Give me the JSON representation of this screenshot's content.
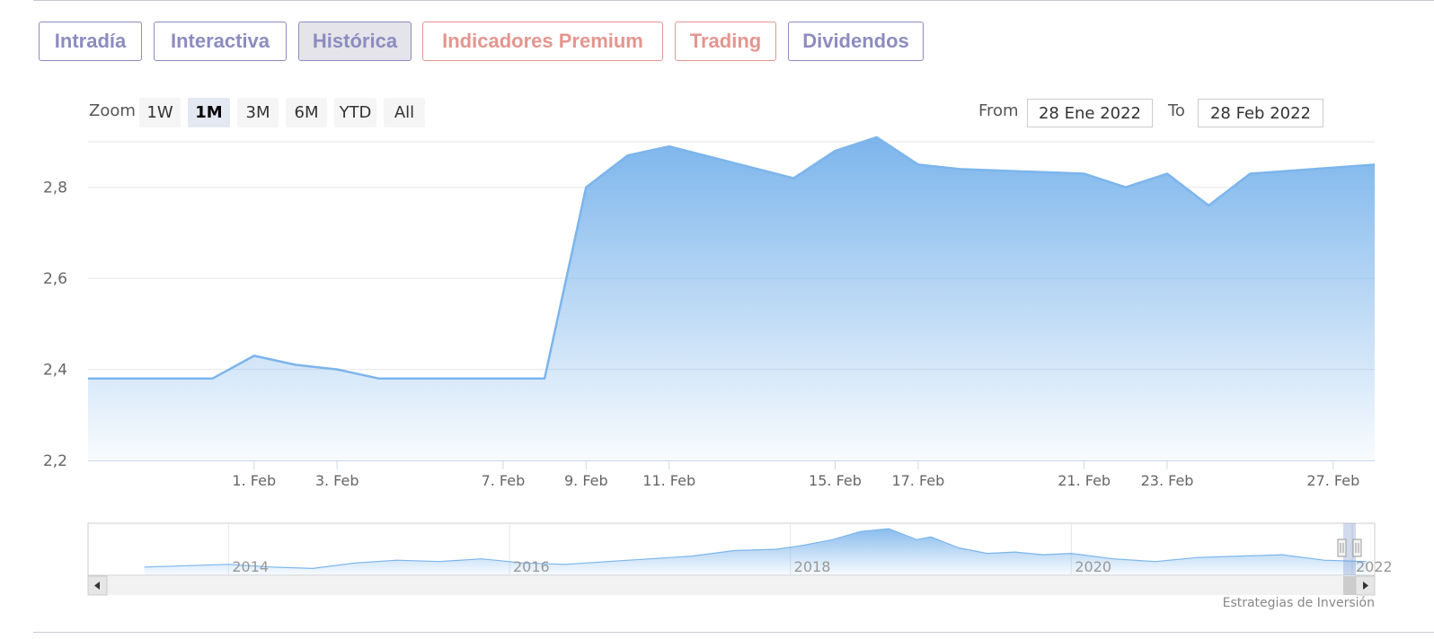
{
  "tabs": [
    {
      "label": "Intradía",
      "style": "default"
    },
    {
      "label": "Interactiva",
      "style": "default"
    },
    {
      "label": "Histórica",
      "style": "active"
    },
    {
      "label": "Indicadores Premium",
      "style": "premium"
    },
    {
      "label": "Trading",
      "style": "premium"
    },
    {
      "label": "Dividendos",
      "style": "default"
    }
  ],
  "zoom": {
    "label": "Zoom",
    "buttons": [
      "1W",
      "1M",
      "3M",
      "6M",
      "YTD",
      "All"
    ],
    "selected": "1M"
  },
  "range": {
    "from_label": "From",
    "from_value": "28 Ene 2022",
    "to_label": "To",
    "to_value": "28 Feb 2022"
  },
  "credit": "Estrategias de Inversión",
  "colors": {
    "line": "#7cb5ec",
    "tab_default": "#8d8cbf",
    "tab_premium": "#e3968f"
  },
  "chart_data": {
    "type": "area",
    "title": "",
    "xlabel": "",
    "ylabel": "",
    "ylim": [
      2.2,
      2.9
    ],
    "y_ticks": [
      "2,2",
      "2,4",
      "2,6",
      "2,8"
    ],
    "y_tick_values": [
      2.2,
      2.4,
      2.6,
      2.8
    ],
    "x_range": [
      "2022-01-28",
      "2022-02-28"
    ],
    "x_ticks": [
      {
        "label": "1. Feb",
        "date": "2022-02-01"
      },
      {
        "label": "3. Feb",
        "date": "2022-02-03"
      },
      {
        "label": "7. Feb",
        "date": "2022-02-07"
      },
      {
        "label": "9. Feb",
        "date": "2022-02-09"
      },
      {
        "label": "11. Feb",
        "date": "2022-02-11"
      },
      {
        "label": "15. Feb",
        "date": "2022-02-15"
      },
      {
        "label": "17. Feb",
        "date": "2022-02-17"
      },
      {
        "label": "21. Feb",
        "date": "2022-02-21"
      },
      {
        "label": "23. Feb",
        "date": "2022-02-23"
      },
      {
        "label": "27. Feb",
        "date": "2022-02-27"
      }
    ],
    "series": [
      {
        "x": [
          "2022-01-28",
          "2022-01-31",
          "2022-02-01",
          "2022-02-02",
          "2022-02-03",
          "2022-02-04",
          "2022-02-07",
          "2022-02-08",
          "2022-02-09",
          "2022-02-10",
          "2022-02-11",
          "2022-02-14",
          "2022-02-15",
          "2022-02-16",
          "2022-02-17",
          "2022-02-18",
          "2022-02-21",
          "2022-02-22",
          "2022-02-23",
          "2022-02-24",
          "2022-02-25",
          "2022-02-28"
        ],
        "values": [
          2.38,
          2.38,
          2.43,
          2.41,
          2.4,
          2.38,
          2.38,
          2.38,
          2.8,
          2.87,
          2.89,
          2.82,
          2.88,
          2.91,
          2.85,
          2.84,
          2.83,
          2.8,
          2.83,
          2.76,
          2.83,
          2.85
        ]
      }
    ],
    "navigator": {
      "x_ticks": [
        "2014",
        "2016",
        "2018",
        "2020",
        "2022"
      ],
      "x_tick_years": [
        2014,
        2016,
        2018,
        2020,
        2022
      ],
      "x_range": [
        2013,
        2022.16
      ],
      "x": [
        2013.4,
        2013.7,
        2014.0,
        2014.3,
        2014.6,
        2014.9,
        2015.2,
        2015.5,
        2015.8,
        2016.1,
        2016.4,
        2016.7,
        2017.0,
        2017.3,
        2017.6,
        2017.9,
        2018.1,
        2018.3,
        2018.5,
        2018.7,
        2018.9,
        2019.0,
        2019.2,
        2019.4,
        2019.6,
        2019.8,
        2020.0,
        2020.3,
        2020.6,
        2020.9,
        2021.2,
        2021.5,
        2021.8,
        2022.1
      ],
      "values": [
        1.9,
        1.95,
        2.0,
        1.9,
        1.85,
        2.05,
        2.15,
        2.1,
        2.2,
        2.05,
        2.0,
        2.1,
        2.2,
        2.3,
        2.5,
        2.55,
        2.7,
        2.9,
        3.2,
        3.3,
        2.9,
        3.0,
        2.6,
        2.4,
        2.45,
        2.35,
        2.4,
        2.2,
        2.1,
        2.25,
        2.3,
        2.35,
        2.15,
        2.1
      ],
      "ylim": [
        1.6,
        3.5
      ]
    }
  }
}
